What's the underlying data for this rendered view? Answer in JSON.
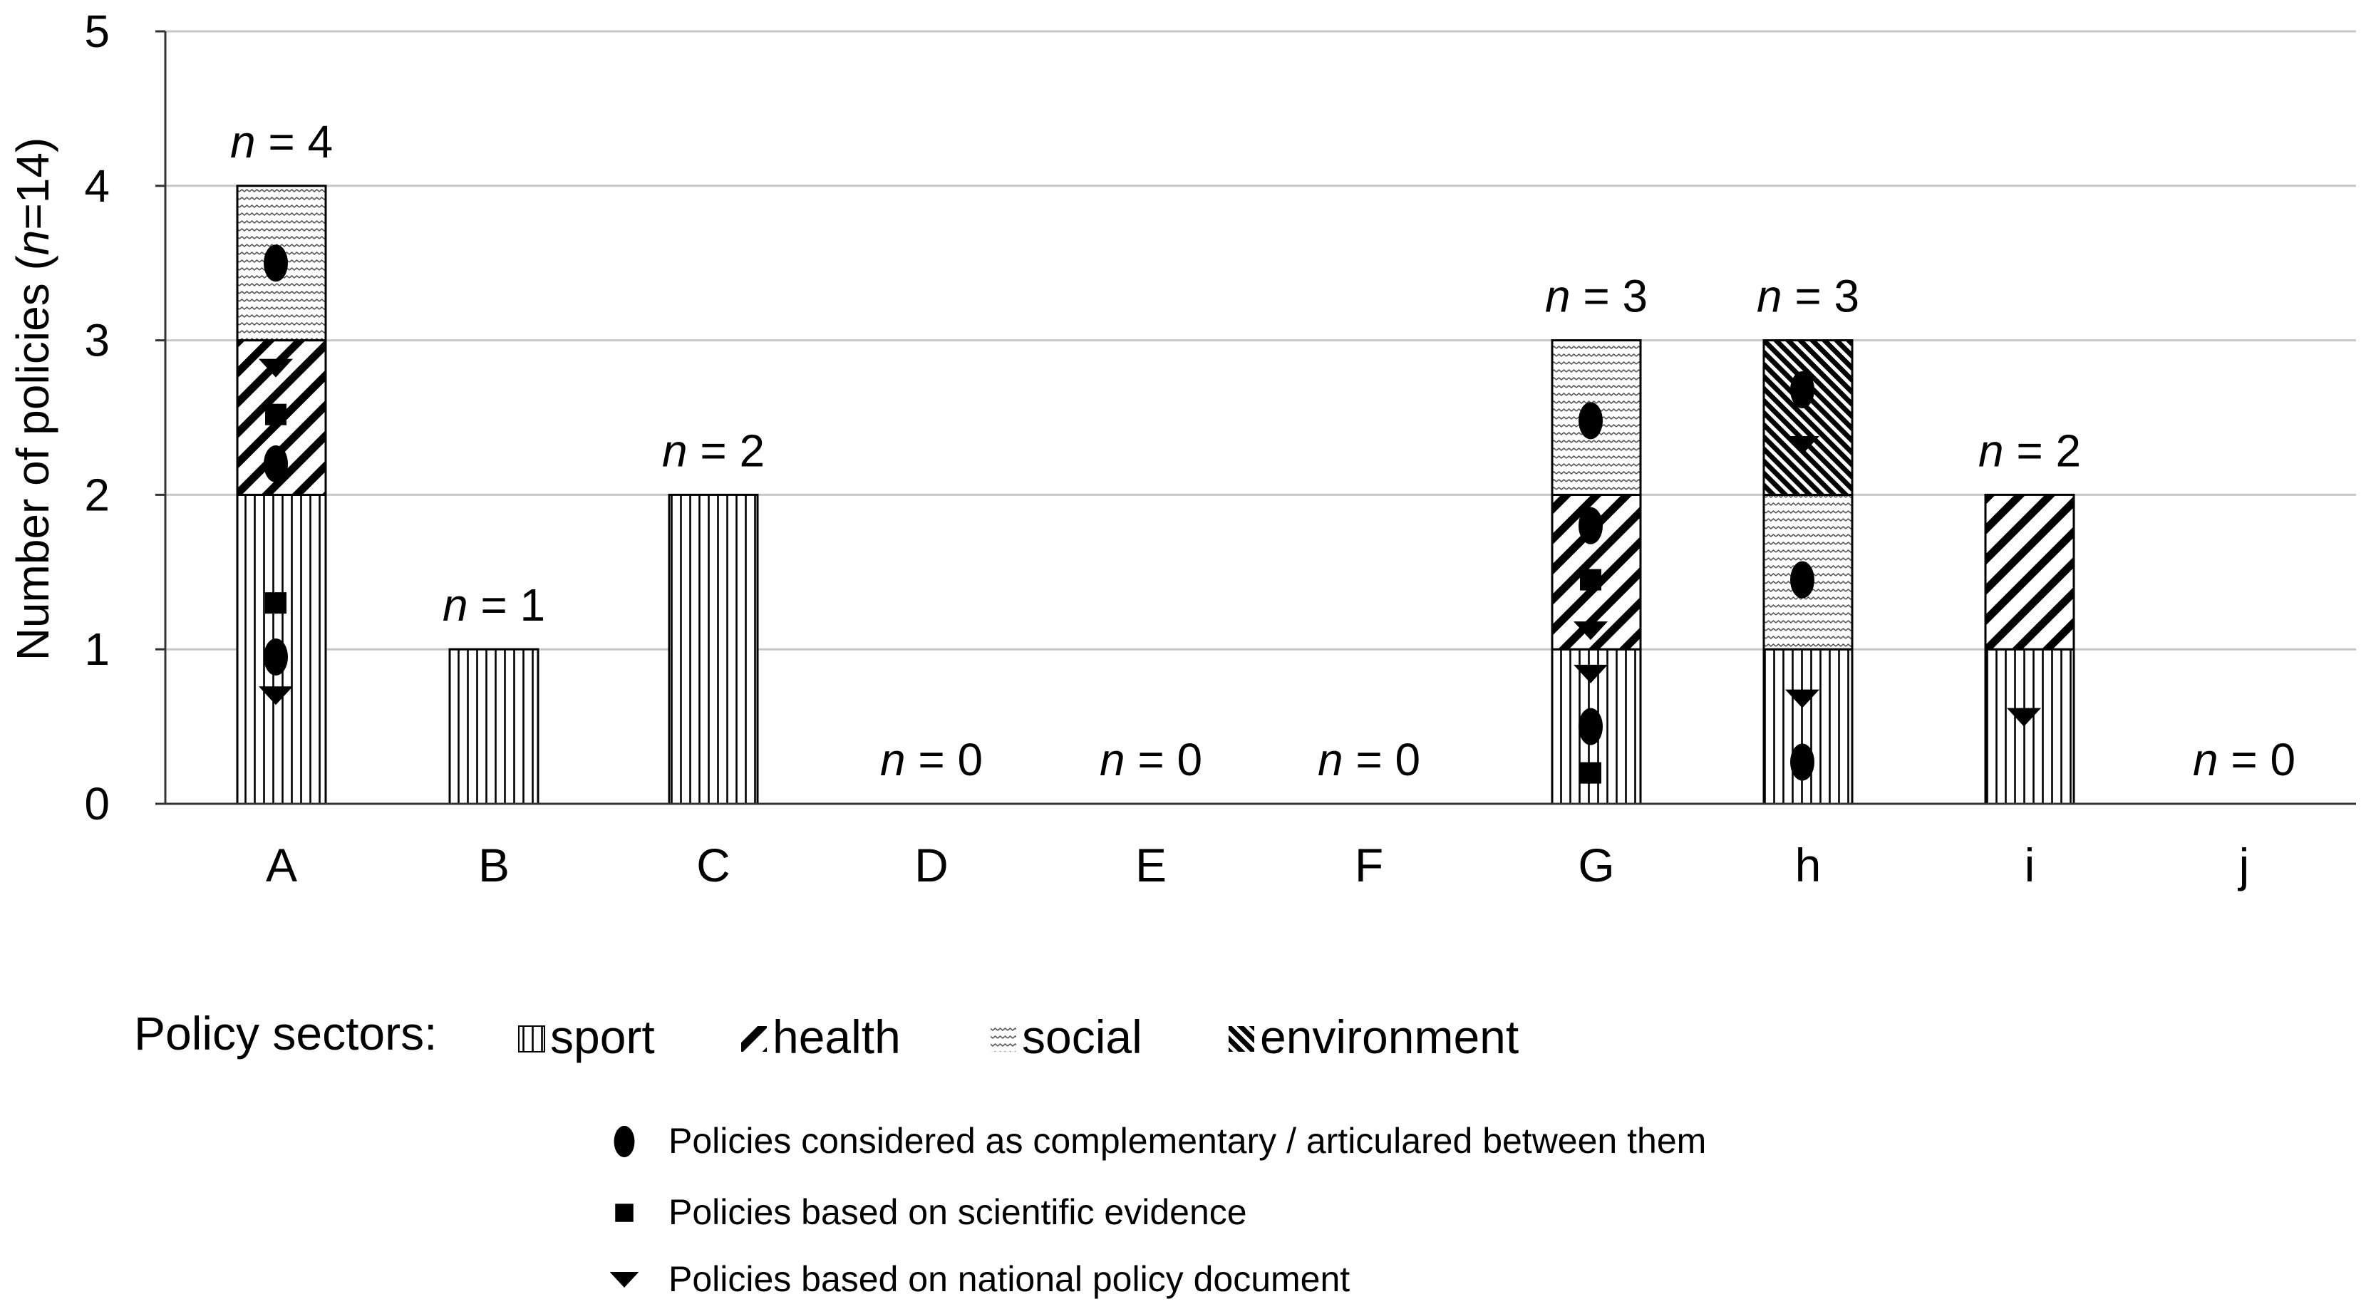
{
  "chart_data": {
    "type": "bar",
    "stacked": true,
    "ylabel_prefix": "Number of policies (",
    "ylabel_italic": "n",
    "ylabel_suffix": "=14)",
    "ylim": [
      0,
      5
    ],
    "yticks": [
      "0",
      "1",
      "2",
      "3",
      "4",
      "5"
    ],
    "categories": [
      "A",
      "B",
      "C",
      "D",
      "E",
      "F",
      "G",
      "h",
      "i",
      "j"
    ],
    "series": [
      {
        "name": "sport",
        "values": [
          2,
          1,
          2,
          0,
          0,
          0,
          1,
          1,
          1,
          0
        ]
      },
      {
        "name": "health",
        "values": [
          1,
          0,
          0,
          0,
          0,
          0,
          1,
          0,
          1,
          0
        ]
      },
      {
        "name": "social",
        "values": [
          1,
          0,
          0,
          0,
          0,
          0,
          1,
          1,
          0,
          0
        ]
      },
      {
        "name": "environment",
        "values": [
          0,
          0,
          0,
          0,
          0,
          0,
          0,
          1,
          0,
          0
        ]
      }
    ],
    "totals": [
      {
        "n": "n",
        "eq": " = 4"
      },
      {
        "n": "n",
        "eq": " = 1"
      },
      {
        "n": "n",
        "eq": " = 2"
      },
      {
        "n": "n",
        "eq": " = 0"
      },
      {
        "n": "n",
        "eq": " = 0"
      },
      {
        "n": "n",
        "eq": " = 0"
      },
      {
        "n": "n",
        "eq": " = 3"
      },
      {
        "n": "n",
        "eq": " = 3"
      },
      {
        "n": "n",
        "eq": " = 2"
      },
      {
        "n": "n",
        "eq": " = 0"
      }
    ],
    "markers": [
      {
        "category": "A",
        "shape": "ellipse",
        "y": 3.5
      },
      {
        "category": "A",
        "shape": "triangle",
        "y": 2.82
      },
      {
        "category": "A",
        "shape": "square",
        "y": 2.52
      },
      {
        "category": "A",
        "shape": "ellipse",
        "y": 2.2
      },
      {
        "category": "A",
        "shape": "square",
        "y": 1.3
      },
      {
        "category": "A",
        "shape": "ellipse",
        "y": 0.95
      },
      {
        "category": "A",
        "shape": "triangle",
        "y": 0.7
      },
      {
        "category": "G",
        "shape": "ellipse",
        "y": 2.48
      },
      {
        "category": "G",
        "shape": "ellipse",
        "y": 1.8
      },
      {
        "category": "G",
        "shape": "square",
        "y": 1.45
      },
      {
        "category": "G",
        "shape": "triangle",
        "y": 1.12
      },
      {
        "category": "G",
        "shape": "triangle",
        "y": 0.84
      },
      {
        "category": "G",
        "shape": "ellipse",
        "y": 0.5
      },
      {
        "category": "G",
        "shape": "square",
        "y": 0.2
      },
      {
        "category": "h",
        "shape": "ellipse",
        "y": 2.68
      },
      {
        "category": "h",
        "shape": "triangle",
        "y": 2.32
      },
      {
        "category": "h",
        "shape": "ellipse",
        "y": 1.45
      },
      {
        "category": "h",
        "shape": "triangle",
        "y": 0.68
      },
      {
        "category": "h",
        "shape": "ellipse",
        "y": 0.27
      },
      {
        "category": "i",
        "shape": "triangle",
        "y": 0.56
      }
    ],
    "legend_title": "Policy sectors:",
    "legend_sectors": [
      "sport",
      "health",
      "social",
      "environment"
    ],
    "legend_markers": [
      {
        "shape": "ellipse",
        "label": "Policies considered as complementary / articulared between them"
      },
      {
        "shape": "square",
        "label": "Policies based on scientific evidence"
      },
      {
        "shape": "triangle",
        "label": "Policies based on national policy document"
      }
    ]
  }
}
